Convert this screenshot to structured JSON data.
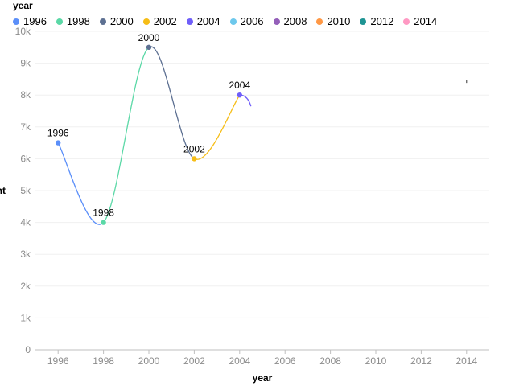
{
  "chart_data": {
    "type": "line",
    "legend_title": "year",
    "legend_placement": "top-left",
    "series": [
      {
        "name": "1996",
        "color": "#5b8ff9"
      },
      {
        "name": "1998",
        "color": "#5ad8a6"
      },
      {
        "name": "2000",
        "color": "#5d7092"
      },
      {
        "name": "2002",
        "color": "#f6bd16"
      },
      {
        "name": "2004",
        "color": "#6f5ef9"
      },
      {
        "name": "2006",
        "color": "#6dc8ec"
      },
      {
        "name": "2008",
        "color": "#945fb9"
      },
      {
        "name": "2010",
        "color": "#ff9845"
      },
      {
        "name": "2012",
        "color": "#1e9493"
      },
      {
        "name": "2014",
        "color": "#ff99c3"
      }
    ],
    "points": [
      {
        "x": 1996,
        "y": 6500,
        "label": "1996"
      },
      {
        "x": 1998,
        "y": 4000,
        "label": "1998"
      },
      {
        "x": 2000,
        "y": 9500,
        "label": "2000"
      },
      {
        "x": 2002,
        "y": 6000,
        "label": "2002"
      },
      {
        "x": 2004,
        "y": 8000,
        "label": "2004"
      }
    ],
    "x_ticks": [
      "1996",
      "1998",
      "2000",
      "2002",
      "2004",
      "2006",
      "2008",
      "2010",
      "2012",
      "2014"
    ],
    "y_ticks": [
      "0",
      "1k",
      "2k",
      "3k",
      "4k",
      "5k",
      "6k",
      "7k",
      "8k",
      "9k",
      "10k"
    ],
    "xlabel": "year",
    "ylabel": "nt",
    "xlim": [
      1995,
      2015
    ],
    "ylim": [
      0,
      10000
    ],
    "grid": true
  }
}
